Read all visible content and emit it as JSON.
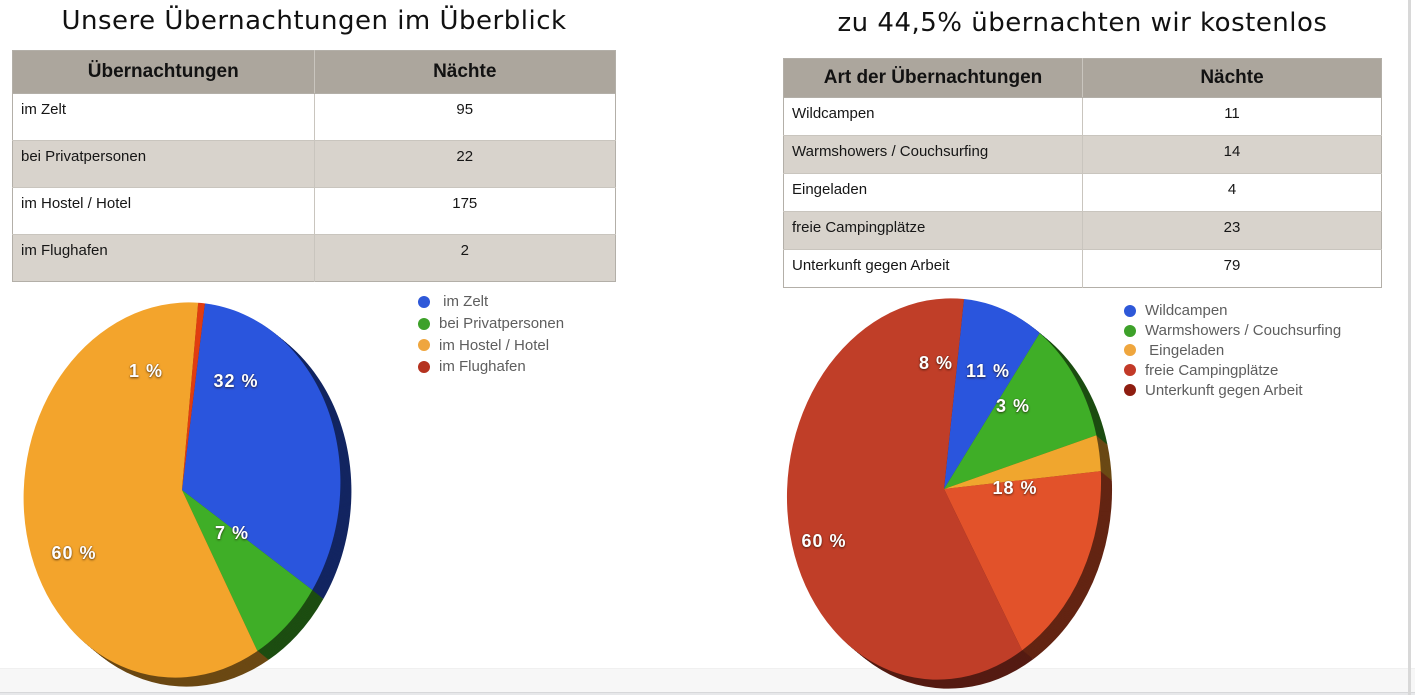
{
  "page": {
    "left": {
      "title": "Unsere Übernachtungen im Überblick",
      "table": {
        "headers": [
          "Übernachtungen",
          "Nächte"
        ],
        "rows": [
          [
            "im Zelt",
            "95"
          ],
          [
            "bei Privatpersonen",
            "22"
          ],
          [
            "im Hostel / Hotel",
            "175"
          ],
          [
            "im Flughafen",
            "2"
          ]
        ]
      }
    },
    "right": {
      "title": "zu 44,5% übernachten wir kostenlos",
      "table": {
        "headers": [
          "Art der Übernachtungen",
          "Nächte"
        ],
        "rows": [
          [
            "Wildcampen",
            "11"
          ],
          [
            "Warmshowers / Couchsurfing",
            "14"
          ],
          [
            "Eingeladen",
            "4"
          ],
          [
            "freie Campingplätze",
            "23"
          ],
          [
            "Unterkunft gegen Arbeit",
            "79"
          ]
        ]
      }
    }
  },
  "chart_data": [
    {
      "type": "pie",
      "is3d": true,
      "title": "Unsere Übernachtungen im Überblick",
      "labels": [
        " im Zelt",
        "bei Privatpersonen",
        "im Hostel / Hotel",
        "im Flughafen"
      ],
      "values": [
        95,
        22,
        175,
        2
      ],
      "percent_labels": [
        "32 %",
        "7 %",
        "60 %",
        "1 %"
      ],
      "slice_colors": [
        "#2a55dd",
        "#3fae27",
        "#f3a42c",
        "#e03c10"
      ],
      "legend_colors": [
        "#2e58d8",
        "#3da12a",
        "#efa63e",
        "#b5321f"
      ],
      "legend_position": "right"
    },
    {
      "type": "pie",
      "is3d": true,
      "title": "zu 44,5% übernachten wir kostenlos",
      "labels": [
        "Wildcampen",
        "Warmshowers / Couchsurfing",
        " Eingeladen",
        "freie Campingplätze",
        "Unterkunft gegen Arbeit"
      ],
      "values": [
        11,
        14,
        4,
        23,
        79
      ],
      "percent_labels": [
        "8 %",
        "11 %",
        "3 %",
        "18 %",
        "60 %"
      ],
      "slice_colors": [
        "#2a55dd",
        "#3fae27",
        "#f0a62e",
        "#e2522a",
        "#c03e28"
      ],
      "legend_colors": [
        "#2e58d8",
        "#3da12a",
        "#efa63e",
        "#c23a28",
        "#8e1d10"
      ],
      "legend_position": "right"
    }
  ],
  "theme": {
    "canvas_bg": "#ffffff",
    "title_text": "#111111",
    "table_header_bg": "#aca69d",
    "table_row_alt_bg": "#d8d3cc",
    "table_border": "#b3afa8",
    "table_grid_line": "#c9c5be",
    "legend_text": "#5e5e5e",
    "pie_label_text": "#ffffff",
    "bottom_band_bg": "#f7f7f7",
    "bottom_strip_bg": "#e7e8ea",
    "right_edge_line": "#d8d8d8"
  }
}
